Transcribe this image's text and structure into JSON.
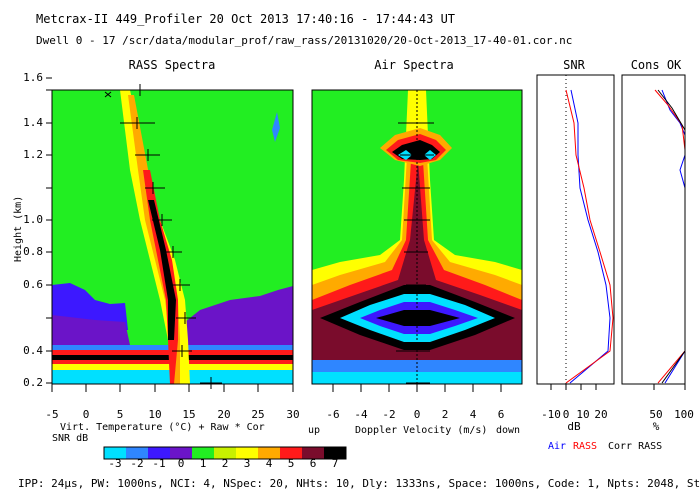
{
  "header": {
    "line1": "Metcrax-II  449_Profiler  20 Oct 2013  17:40:16 - 17:44:43 UT",
    "line2": "Dwell  0 - 17  /scr/data/modular_prof/raw_rass/20131020/20-Oct-2013_17-40-01.cor.nc"
  },
  "panels": {
    "rass": "RASS Spectra",
    "air": "Air Spectra",
    "snr": "SNR",
    "cons": "Cons OK"
  },
  "y_axis": {
    "label": "Height (km)",
    "ticks": [
      "0.2",
      "0.4",
      "0.6",
      "0.8",
      "1.0",
      "1.2",
      "1.4",
      "1.6"
    ]
  },
  "rass_axis": {
    "ticks": [
      "-5",
      "0",
      "5",
      "10",
      "15",
      "20",
      "25",
      "30"
    ],
    "label": "Virt. Temperature (°C)  + Raw  * Cor"
  },
  "air_axis": {
    "ticks": [
      "-6",
      "-4",
      "-2",
      "0",
      "2",
      "4",
      "6"
    ],
    "label": "Doppler Velocity (m/s)",
    "left_label": "up",
    "right_label": "down"
  },
  "snr_axis": {
    "ticks": [
      "-10",
      "0",
      "10",
      "20"
    ],
    "label": "dB"
  },
  "cons_axis": {
    "ticks": [
      "50",
      "100"
    ],
    "label": "%"
  },
  "legend": {
    "air": "Air",
    "rass": "RASS",
    "corr": "Corr RASS"
  },
  "colorbar": {
    "label": "SNR dB",
    "ticks": [
      "-3",
      "-2",
      "-1",
      "0",
      "1",
      "2",
      "3",
      "4",
      "5",
      "6",
      "7"
    ],
    "colors": [
      "#00e0ff",
      "#2f86ff",
      "#3d18ff",
      "#6b14c8",
      "#22ee22",
      "#c8f000",
      "#ffff00",
      "#ffaa00",
      "#ff1a1a",
      "#7a0c2c",
      "#000000"
    ]
  },
  "footer": "IPP:  24µs,  PW: 1000ns,  NCI: 4,  NSpec: 20, NHts: 10,  Dly: 1333ns,  Space: 1000ns,  Code: 1,  Npts: 2048,  Step 1"
}
